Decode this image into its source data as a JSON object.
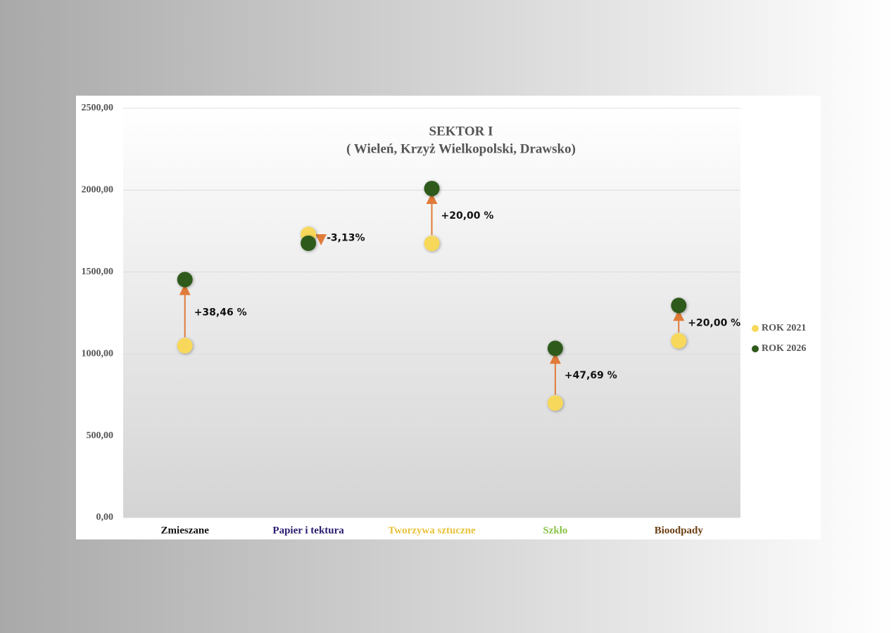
{
  "chart_data": {
    "type": "dot",
    "title": "SEKTOR I",
    "subtitle": "( Wieleń, Krzyż Wielkopolski, Drawsko)",
    "categories": [
      "Zmieszane",
      "Papier i tektura",
      "Tworzywa sztuczne",
      "Szkło",
      "Bioodpady"
    ],
    "category_colors": [
      "#111111",
      "#2a1a6e",
      "#e8c23a",
      "#8bc34a",
      "#6b3e12"
    ],
    "series": [
      {
        "name": "ROK 2021",
        "color": "#f7d85a",
        "values": [
          1050,
          1730,
          1675,
          700,
          1080
        ]
      },
      {
        "name": "ROK 2026",
        "color": "#2f5a1a",
        "values": [
          1454,
          1676,
          2010,
          1034,
          1296
        ]
      }
    ],
    "annotations": [
      "+38,46 %",
      "-3,13%",
      "+20,00 %",
      "+47,69 %",
      "+20,00 %"
    ],
    "arrow_color": "#e07b39",
    "ylim": [
      0,
      2500
    ],
    "yticks": [
      {
        "value": 0,
        "label": "0,00"
      },
      {
        "value": 500,
        "label": "500,00"
      },
      {
        "value": 1000,
        "label": "1000,00"
      },
      {
        "value": 1500,
        "label": "1500,00"
      },
      {
        "value": 2000,
        "label": "2000,00"
      },
      {
        "value": 2500,
        "label": "2500,00"
      }
    ],
    "grid": true,
    "legend": "right"
  }
}
